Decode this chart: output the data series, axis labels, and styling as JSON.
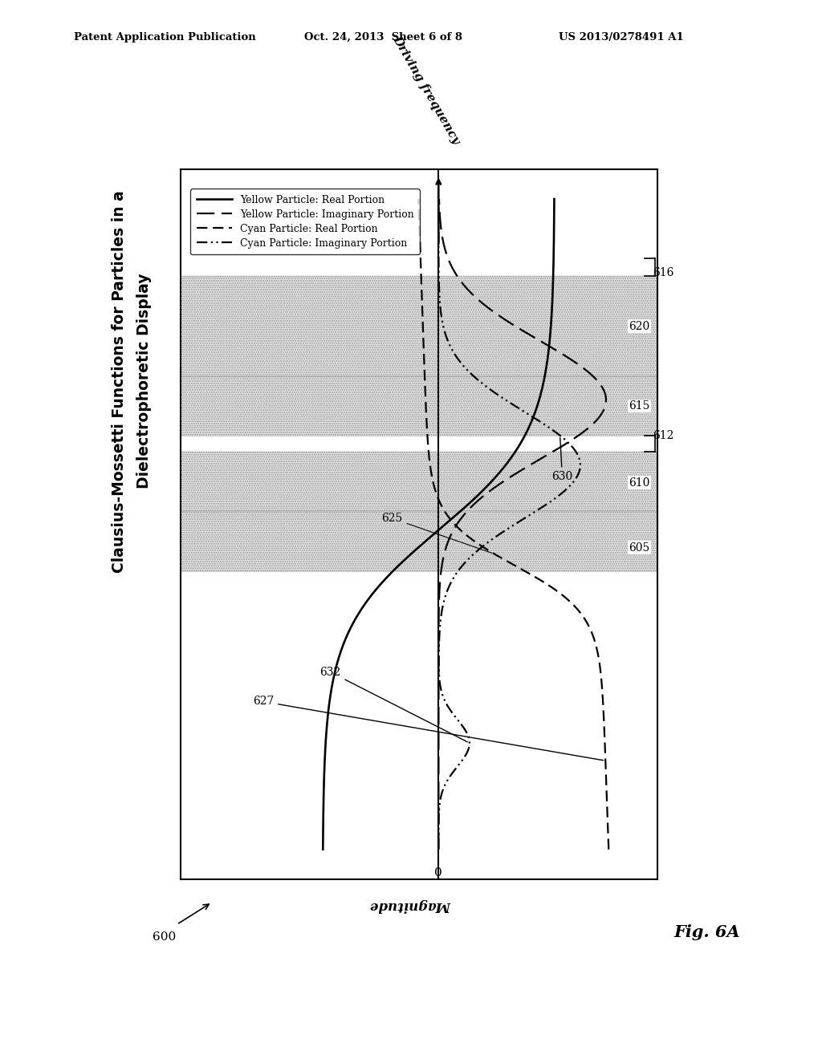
{
  "header_left": "Patent Application Publication",
  "header_center": "Oct. 24, 2013  Sheet 6 of 8",
  "header_right": "US 2013/0278491 A1",
  "title_line1": "Clausius-Mossetti Functions for Particles in a",
  "title_line2": "Dielectrophoretic Display",
  "fig_label": "Fig. 6A",
  "yaxis_label": "Driving frequency",
  "xaxis_label": "Magnitude",
  "legend_entries": [
    {
      "label": "Yellow Particle: Real Portion",
      "ls": "solid"
    },
    {
      "label": "Yellow Particle: Imaginary Portion",
      "ls": "dashed"
    },
    {
      "label": "Cyan Particle: Real Portion",
      "ls": "dashdot"
    },
    {
      "label": "Cyan Particle: Imaginary Portion",
      "ls": "dashdotdot"
    }
  ],
  "band_color": "#cccccc",
  "background_color": "#ffffff",
  "note_600": "600",
  "note_0": "0",
  "labels_right": [
    "605",
    "610",
    "615",
    "620"
  ],
  "labels_bracket": [
    "612",
    "616"
  ],
  "labels_curve": [
    "625",
    "627",
    "630",
    "632"
  ]
}
